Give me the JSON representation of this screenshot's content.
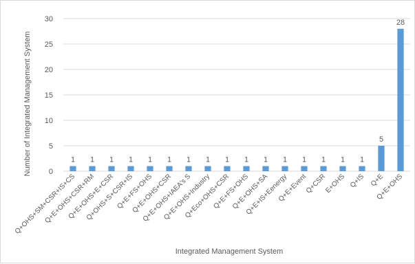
{
  "chart_data": {
    "type": "bar",
    "categories": [
      "Q+OHS+SM+CSR+IS+CS",
      "Q+E+OHS+CSR+RM",
      "Q+E+OHS+E+CSR",
      "Q+OHS+S+CSR+IS",
      "Q+E+FS+OHS",
      "Q+E+OHS+CSR",
      "Q+E+OHS+IAEA's S",
      "Q+E+OHS+Industry",
      "Q+Eco+OHS+CSR",
      "Q+E+FS+OHS",
      "Q+E+OHS+SA",
      "Q+E+IS+Eenergy",
      "Q+E+Event",
      "Q+CSR",
      "E+OHS",
      "Q+IS",
      "Q+E",
      "Q+E+OHS"
    ],
    "values": [
      1,
      1,
      1,
      1,
      1,
      1,
      1,
      1,
      1,
      1,
      1,
      1,
      1,
      1,
      1,
      1,
      5,
      28
    ],
    "xlabel": "Integrated Management System",
    "ylabel": "Number  of Integrated Management System",
    "ylim": [
      0,
      30
    ],
    "yticks": [
      0,
      5,
      10,
      15,
      20,
      25,
      30
    ],
    "grid": true,
    "bar_color": "#5b9bd5",
    "grid_color": "#d9d9d9",
    "legend": "none"
  }
}
